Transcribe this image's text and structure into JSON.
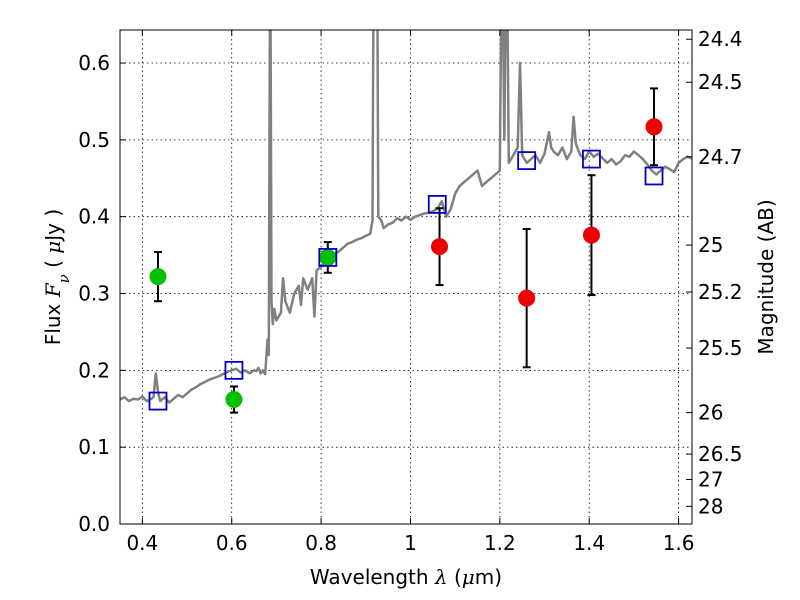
{
  "chart_data": {
    "type": "scatter",
    "title": "",
    "xlabel": "Wavelength  λ (μm)",
    "ylabel": "Flux  F_ν  ( μJy )",
    "ylabel_right": "Magnitude (AB)",
    "xlim": [
      0.35,
      1.63
    ],
    "ylim": [
      0.0,
      0.643
    ],
    "grid": true,
    "x_ticks": [
      0.4,
      0.6,
      0.8,
      1.0,
      1.2,
      1.4,
      1.6
    ],
    "x_tick_labels": [
      "0.4",
      "0.6",
      "0.8",
      "1",
      "1.2",
      "1.4",
      "1.6"
    ],
    "y_ticks": [
      0.0,
      0.1,
      0.2,
      0.3,
      0.4,
      0.5,
      0.6
    ],
    "y_tick_labels": [
      "0.0",
      "0.1",
      "0.2",
      "0.3",
      "0.4",
      "0.5",
      "0.6"
    ],
    "right_ticks": [
      {
        "flux": 0.631,
        "label": "24.4"
      },
      {
        "flux": 0.575,
        "label": "24.5"
      },
      {
        "flux": 0.478,
        "label": "24.7"
      },
      {
        "flux": 0.363,
        "label": "25"
      },
      {
        "flux": 0.302,
        "label": "25.2"
      },
      {
        "flux": 0.229,
        "label": "25.5"
      },
      {
        "flux": 0.145,
        "label": "26"
      },
      {
        "flux": 0.091,
        "label": "26.5"
      },
      {
        "flux": 0.058,
        "label": "27"
      },
      {
        "flux": 0.023,
        "label": "28"
      }
    ],
    "colors": {
      "model": "#808080",
      "green_points": "#00c000",
      "red_points": "#ee0000",
      "squares": "#0000cc",
      "errorbars": "#000000"
    },
    "series": [
      {
        "kind": "green-points",
        "x": [
          0.435,
          0.605,
          0.815
        ],
        "y": [
          0.322,
          0.162,
          0.347
        ],
        "err": [
          0.032,
          0.017,
          0.02
        ]
      },
      {
        "kind": "red-points",
        "x": [
          1.065,
          1.26,
          1.405,
          1.545
        ],
        "y": [
          0.361,
          0.294,
          0.376,
          0.517
        ],
        "err": [
          0.05,
          0.09,
          0.078,
          0.05
        ]
      },
      {
        "kind": "model-bandpass-squares",
        "x": [
          0.435,
          0.605,
          0.815,
          1.06,
          1.26,
          1.405,
          1.545
        ],
        "y": [
          0.16,
          0.2,
          0.347,
          0.416,
          0.473,
          0.475,
          0.453
        ]
      },
      {
        "kind": "model-spectrum",
        "points": [
          [
            0.35,
            0.162
          ],
          [
            0.36,
            0.165
          ],
          [
            0.37,
            0.16
          ],
          [
            0.38,
            0.163
          ],
          [
            0.39,
            0.162
          ],
          [
            0.4,
            0.166
          ],
          [
            0.41,
            0.16
          ],
          [
            0.42,
            0.163
          ],
          [
            0.425,
            0.165
          ],
          [
            0.43,
            0.196
          ],
          [
            0.435,
            0.172
          ],
          [
            0.44,
            0.16
          ],
          [
            0.45,
            0.165
          ],
          [
            0.46,
            0.158
          ],
          [
            0.47,
            0.163
          ],
          [
            0.48,
            0.168
          ],
          [
            0.49,
            0.165
          ],
          [
            0.5,
            0.17
          ],
          [
            0.51,
            0.175
          ],
          [
            0.52,
            0.178
          ],
          [
            0.53,
            0.182
          ],
          [
            0.54,
            0.185
          ],
          [
            0.55,
            0.188
          ],
          [
            0.56,
            0.19
          ],
          [
            0.57,
            0.192
          ],
          [
            0.58,
            0.195
          ],
          [
            0.59,
            0.198
          ],
          [
            0.6,
            0.2
          ],
          [
            0.61,
            0.202
          ],
          [
            0.62,
            0.197
          ],
          [
            0.63,
            0.2
          ],
          [
            0.64,
            0.196
          ],
          [
            0.65,
            0.2
          ],
          [
            0.655,
            0.199
          ],
          [
            0.66,
            0.203
          ],
          [
            0.665,
            0.196
          ],
          [
            0.67,
            0.2
          ],
          [
            0.675,
            0.195
          ],
          [
            0.68,
            0.24
          ],
          [
            0.683,
            0.22
          ],
          [
            0.686,
            0.8
          ],
          [
            0.689,
            0.29
          ],
          [
            0.692,
            0.26
          ],
          [
            0.695,
            0.28
          ],
          [
            0.7,
            0.265
          ],
          [
            0.71,
            0.275
          ],
          [
            0.715,
            0.32
          ],
          [
            0.72,
            0.29
          ],
          [
            0.73,
            0.275
          ],
          [
            0.74,
            0.3
          ],
          [
            0.75,
            0.31
          ],
          [
            0.755,
            0.285
          ],
          [
            0.76,
            0.32
          ],
          [
            0.77,
            0.305
          ],
          [
            0.78,
            0.32
          ],
          [
            0.785,
            0.27
          ],
          [
            0.79,
            0.33
          ],
          [
            0.8,
            0.335
          ],
          [
            0.81,
            0.34
          ],
          [
            0.815,
            0.345
          ],
          [
            0.82,
            0.348
          ],
          [
            0.83,
            0.352
          ],
          [
            0.84,
            0.355
          ],
          [
            0.85,
            0.36
          ],
          [
            0.86,
            0.365
          ],
          [
            0.87,
            0.367
          ],
          [
            0.88,
            0.37
          ],
          [
            0.89,
            0.372
          ],
          [
            0.9,
            0.375
          ],
          [
            0.91,
            0.378
          ],
          [
            0.915,
            0.395
          ],
          [
            0.918,
            0.8
          ],
          [
            0.925,
            0.8
          ],
          [
            0.928,
            0.4
          ],
          [
            0.935,
            0.395
          ],
          [
            0.94,
            0.385
          ],
          [
            0.95,
            0.39
          ],
          [
            0.96,
            0.392
          ],
          [
            0.97,
            0.398
          ],
          [
            0.98,
            0.395
          ],
          [
            0.99,
            0.4
          ],
          [
            1.0,
            0.396
          ],
          [
            1.01,
            0.4
          ],
          [
            1.02,
            0.402
          ],
          [
            1.03,
            0.404
          ],
          [
            1.04,
            0.405
          ],
          [
            1.05,
            0.407
          ],
          [
            1.06,
            0.41
          ],
          [
            1.07,
            0.42
          ],
          [
            1.08,
            0.4
          ],
          [
            1.09,
            0.41
          ],
          [
            1.1,
            0.43
          ],
          [
            1.11,
            0.44
          ],
          [
            1.12,
            0.445
          ],
          [
            1.13,
            0.45
          ],
          [
            1.14,
            0.455
          ],
          [
            1.15,
            0.46
          ],
          [
            1.16,
            0.44
          ],
          [
            1.17,
            0.445
          ],
          [
            1.18,
            0.45
          ],
          [
            1.19,
            0.455
          ],
          [
            1.2,
            0.46
          ],
          [
            1.205,
            0.8
          ],
          [
            1.21,
            0.5
          ],
          [
            1.215,
            0.8
          ],
          [
            1.22,
            0.47
          ],
          [
            1.23,
            0.48
          ],
          [
            1.24,
            0.49
          ],
          [
            1.245,
            0.6
          ],
          [
            1.25,
            0.48
          ],
          [
            1.26,
            0.47
          ],
          [
            1.27,
            0.475
          ],
          [
            1.28,
            0.48
          ],
          [
            1.29,
            0.47
          ],
          [
            1.3,
            0.482
          ],
          [
            1.31,
            0.51
          ],
          [
            1.315,
            0.49
          ],
          [
            1.32,
            0.485
          ],
          [
            1.33,
            0.48
          ],
          [
            1.34,
            0.49
          ],
          [
            1.35,
            0.475
          ],
          [
            1.36,
            0.485
          ],
          [
            1.365,
            0.53
          ],
          [
            1.37,
            0.495
          ],
          [
            1.38,
            0.48
          ],
          [
            1.39,
            0.475
          ],
          [
            1.4,
            0.485
          ],
          [
            1.41,
            0.478
          ],
          [
            1.42,
            0.482
          ],
          [
            1.43,
            0.476
          ],
          [
            1.44,
            0.47
          ],
          [
            1.45,
            0.475
          ],
          [
            1.46,
            0.468
          ],
          [
            1.47,
            0.472
          ],
          [
            1.48,
            0.48
          ],
          [
            1.49,
            0.478
          ],
          [
            1.5,
            0.485
          ],
          [
            1.51,
            0.48
          ],
          [
            1.52,
            0.475
          ],
          [
            1.53,
            0.468
          ],
          [
            1.54,
            0.46
          ],
          [
            1.55,
            0.455
          ],
          [
            1.56,
            0.46
          ],
          [
            1.57,
            0.465
          ],
          [
            1.58,
            0.462
          ],
          [
            1.59,
            0.458
          ],
          [
            1.6,
            0.47
          ],
          [
            1.61,
            0.475
          ],
          [
            1.62,
            0.478
          ],
          [
            1.63,
            0.476
          ]
        ]
      }
    ]
  }
}
